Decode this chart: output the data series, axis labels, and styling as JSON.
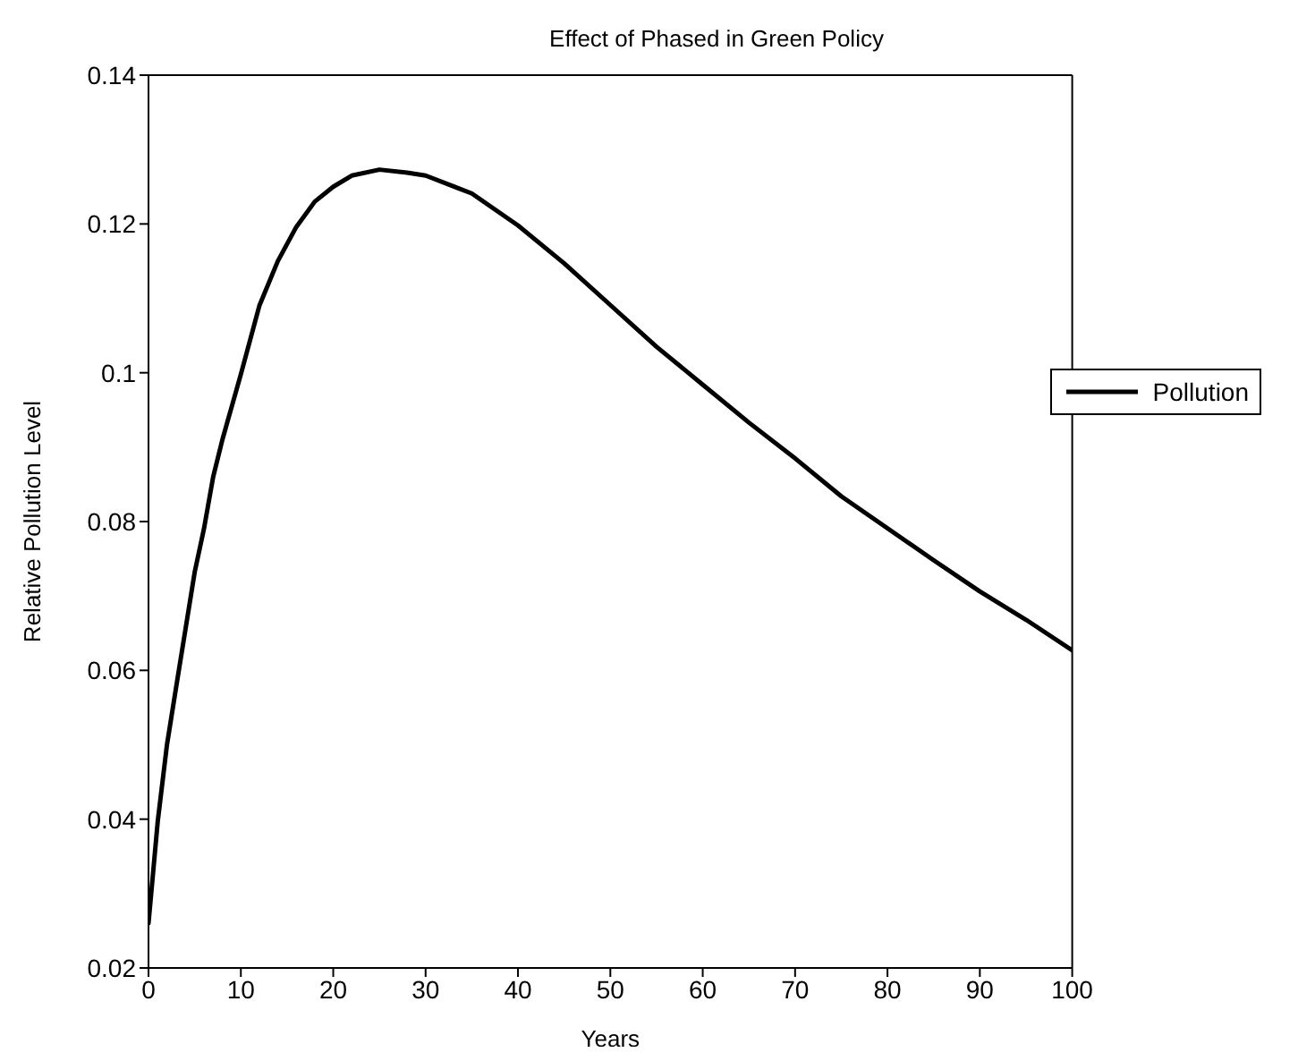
{
  "chart_data": {
    "type": "line",
    "title": "Effect of Phased in Green Policy",
    "xlabel": "Years",
    "ylabel": "Relative Pollution Level",
    "series": [
      {
        "name": "Pollution",
        "color": "#000000",
        "x": [
          0,
          1,
          2,
          3,
          4,
          5,
          6,
          7,
          8,
          10,
          12,
          14,
          16,
          18,
          20,
          22,
          25,
          28,
          30,
          35,
          40,
          45,
          50,
          55,
          60,
          65,
          70,
          75,
          85,
          90,
          95,
          100
        ],
        "values": [
          0.026,
          0.0397,
          0.05,
          0.0578,
          0.0655,
          0.0732,
          0.079,
          0.086,
          0.091,
          0.0998,
          0.109,
          0.115,
          0.1196,
          0.123,
          0.125,
          0.1265,
          0.1273,
          0.1269,
          0.1265,
          0.1241,
          0.1198,
          0.1147,
          0.1091,
          0.1035,
          0.0984,
          0.0933,
          0.0885,
          0.0834,
          0.0748,
          0.0706,
          0.0668,
          0.0627
        ]
      }
    ],
    "xlim": [
      0,
      100
    ],
    "xticks": [
      0,
      10,
      20,
      30,
      40,
      50,
      60,
      70,
      80,
      90,
      100
    ],
    "ylim": [
      0.02,
      0.14
    ],
    "yticks": [
      0.02,
      0.04,
      0.06,
      0.08,
      0.1,
      0.12,
      0.14
    ],
    "grid": false,
    "legend": "right",
    "marker": "none",
    "line_style": "solid"
  }
}
